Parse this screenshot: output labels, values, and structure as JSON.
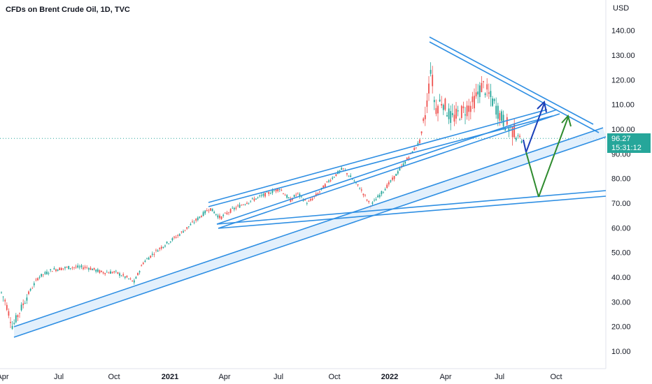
{
  "header": {
    "title": "CFDs on Brent Crude Oil, 1D, TVC"
  },
  "chart_data": {
    "type": "candlestick",
    "title": "CFDs on Brent Crude Oil, 1D, TVC",
    "y_unit": "USD",
    "ylim": [
      5,
      150
    ],
    "y_ticks": [
      "140.00",
      "130.00",
      "120.00",
      "110.00",
      "100.00",
      "90.00",
      "80.00",
      "70.00",
      "60.00",
      "50.00",
      "40.00",
      "30.00",
      "20.00",
      "10.00"
    ],
    "x_ticks": [
      "Apr",
      "Jul",
      "Oct",
      "2021",
      "Apr",
      "Jul",
      "Oct",
      "2022",
      "Apr",
      "Jul",
      "Oct"
    ],
    "x_ticks_bold": [
      "2021",
      "2022"
    ],
    "price_anchors": [
      {
        "x": 0,
        "y": 35
      },
      {
        "x": 8,
        "y": 30
      },
      {
        "x": 18,
        "y": 20
      },
      {
        "x": 28,
        "y": 26
      },
      {
        "x": 40,
        "y": 33
      },
      {
        "x": 55,
        "y": 40
      },
      {
        "x": 75,
        "y": 43
      },
      {
        "x": 100,
        "y": 44
      },
      {
        "x": 125,
        "y": 44
      },
      {
        "x": 145,
        "y": 42
      },
      {
        "x": 165,
        "y": 42
      },
      {
        "x": 180,
        "y": 40
      },
      {
        "x": 192,
        "y": 38
      },
      {
        "x": 205,
        "y": 46
      },
      {
        "x": 225,
        "y": 51
      },
      {
        "x": 255,
        "y": 57
      },
      {
        "x": 280,
        "y": 63
      },
      {
        "x": 300,
        "y": 68
      },
      {
        "x": 315,
        "y": 64
      },
      {
        "x": 330,
        "y": 67
      },
      {
        "x": 350,
        "y": 70
      },
      {
        "x": 375,
        "y": 73
      },
      {
        "x": 400,
        "y": 76
      },
      {
        "x": 415,
        "y": 71
      },
      {
        "x": 425,
        "y": 74
      },
      {
        "x": 440,
        "y": 70
      },
      {
        "x": 455,
        "y": 74
      },
      {
        "x": 470,
        "y": 79
      },
      {
        "x": 490,
        "y": 84
      },
      {
        "x": 503,
        "y": 80
      },
      {
        "x": 515,
        "y": 76
      },
      {
        "x": 530,
        "y": 69
      },
      {
        "x": 545,
        "y": 74
      },
      {
        "x": 565,
        "y": 81
      },
      {
        "x": 585,
        "y": 89
      },
      {
        "x": 600,
        "y": 95
      },
      {
        "x": 607,
        "y": 104
      },
      {
        "x": 612,
        "y": 114
      },
      {
        "x": 616,
        "y": 126
      },
      {
        "x": 622,
        "y": 108
      },
      {
        "x": 632,
        "y": 112
      },
      {
        "x": 645,
        "y": 104
      },
      {
        "x": 660,
        "y": 107
      },
      {
        "x": 675,
        "y": 110
      },
      {
        "x": 690,
        "y": 118
      },
      {
        "x": 705,
        "y": 111
      },
      {
        "x": 718,
        "y": 104
      },
      {
        "x": 730,
        "y": 100
      },
      {
        "x": 740,
        "y": 98
      },
      {
        "x": 748,
        "y": 94
      }
    ],
    "current_price": {
      "label": "96.27",
      "countdown": "15:31:12",
      "value": 96.27
    },
    "colors": {
      "up": "#26a69a",
      "down": "#ef5350",
      "lines": "#2f8fe3",
      "blue_arrow": "#1a3fb8",
      "green_arrow": "#2e8b2e",
      "price_tag": "#26a69a"
    }
  }
}
